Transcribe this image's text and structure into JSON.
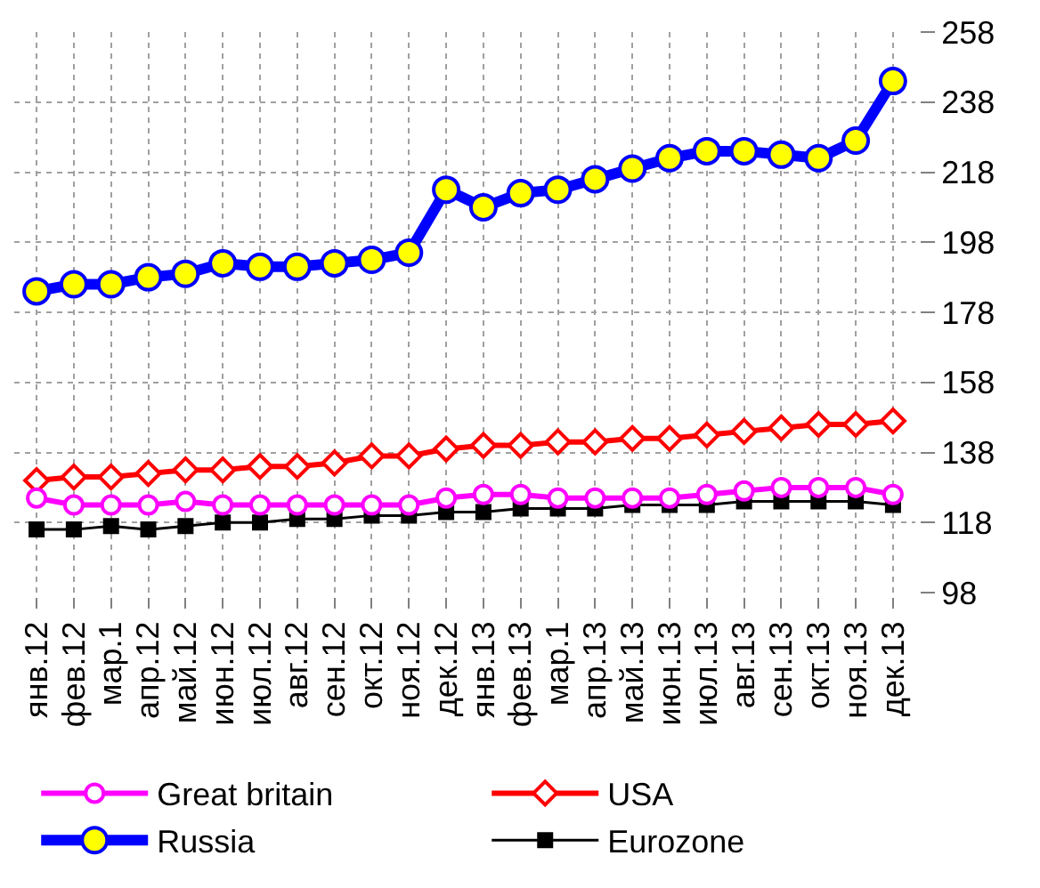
{
  "chart_data": {
    "type": "line",
    "categories": [
      "янв.12",
      "фев.12",
      "мар.1",
      "апр.12",
      "май.12",
      "июн.12",
      "июл.12",
      "авг.12",
      "сен.12",
      "окт.12",
      "ноя.12",
      "дек.12",
      "янв.13",
      "фев.13",
      "мар.1",
      "апр.13",
      "май.13",
      "июн.13",
      "июл.13",
      "авг.13",
      "сен.13",
      "окт.13",
      "ноя.13",
      "дек.13"
    ],
    "series": [
      {
        "name": "Great britain",
        "color": "#ff00ff",
        "marker": "circle",
        "values": [
          125,
          123,
          123,
          123,
          124,
          123,
          123,
          123,
          123,
          123,
          123,
          125,
          126,
          126,
          125,
          125,
          125,
          125,
          126,
          127,
          128,
          128,
          128,
          126
        ]
      },
      {
        "name": "USA",
        "color": "#ff0000",
        "marker": "diamond",
        "values": [
          130,
          131,
          131,
          132,
          133,
          133,
          134,
          134,
          135,
          137,
          137,
          139,
          140,
          140,
          141,
          141,
          142,
          142,
          143,
          144,
          145,
          146,
          146,
          147
        ]
      },
      {
        "name": "Russia",
        "color": "#0000ff",
        "marker": "circle",
        "values": [
          184,
          186,
          186,
          188,
          189,
          192,
          191,
          191,
          192,
          193,
          195,
          213,
          208,
          212,
          213,
          216,
          219,
          222,
          224,
          224,
          223,
          222,
          227,
          244
        ]
      },
      {
        "name": "Eurozone",
        "color": "#000000",
        "marker": "square",
        "values": [
          116,
          116,
          117,
          116,
          117,
          118,
          118,
          119,
          119,
          120,
          120,
          121,
          121,
          122,
          122,
          122,
          123,
          123,
          123,
          124,
          124,
          124,
          124,
          123
        ]
      }
    ],
    "ylim": [
      98,
      258
    ],
    "yticks": [
      98,
      118,
      138,
      158,
      178,
      198,
      218,
      238,
      258
    ],
    "grid": true,
    "legend": "bottom"
  }
}
